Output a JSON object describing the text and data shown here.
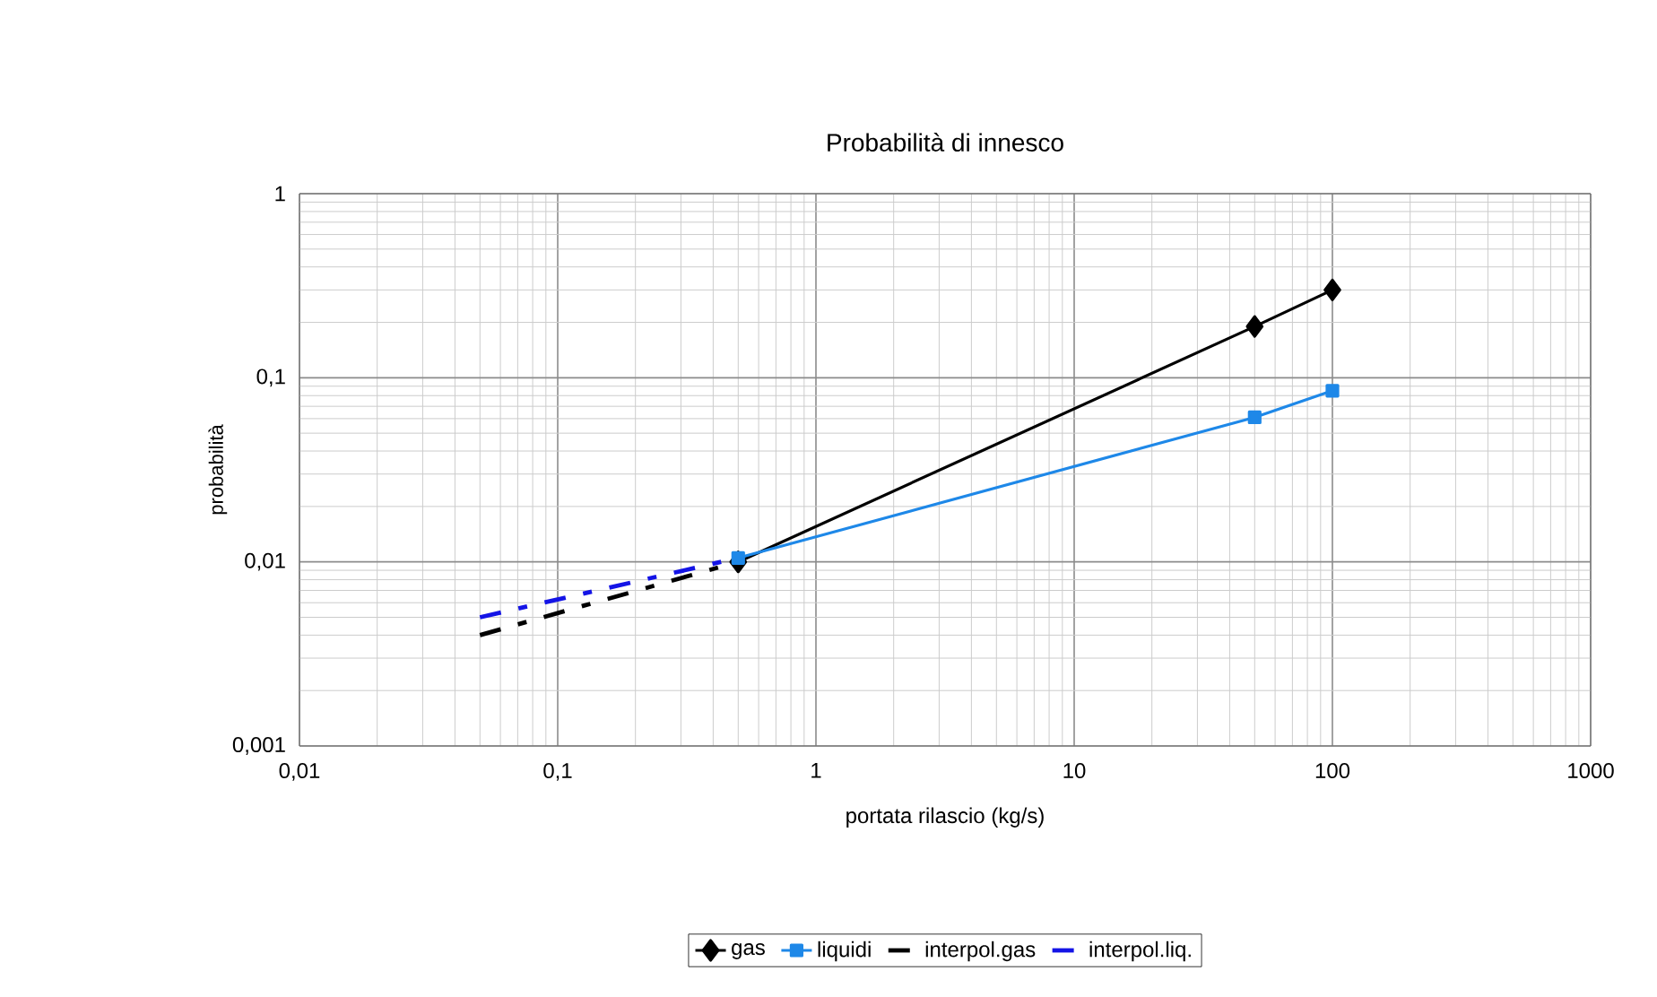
{
  "chart_data": {
    "type": "line",
    "title": "Probabilità di innesco",
    "xlabel": "portata rilascio (kg/s)",
    "ylabel": "probabilità",
    "log": "xy",
    "grid": true,
    "legend": "bottom",
    "xlim": [
      0.01,
      1000
    ],
    "ylim": [
      0.001,
      1
    ],
    "xticks": [
      {
        "value": 0.01,
        "label": "0,01"
      },
      {
        "value": 0.1,
        "label": "0,1"
      },
      1,
      10,
      100,
      1000
    ],
    "yticks": [
      {
        "value": 0.001,
        "label": "0,001"
      },
      {
        "value": 0.01,
        "label": "0,01"
      },
      {
        "value": 0.1,
        "label": "0,1"
      },
      1
    ],
    "series": [
      {
        "name": "gas",
        "color": "#000000",
        "marker": "diamond",
        "line_style": "solid",
        "x": [
          0.5,
          50,
          100
        ],
        "values": [
          0.01,
          0.19,
          0.3
        ]
      },
      {
        "name": "liquidi",
        "color": "#1e88e8",
        "marker": "square",
        "line_style": "solid",
        "x": [
          0.5,
          50,
          100
        ],
        "values": [
          0.0105,
          0.061,
          0.085
        ]
      },
      {
        "name": "interpol.gas",
        "color": "#000000",
        "marker": "none",
        "line_style": "dashed",
        "x": [
          0.05,
          0.5
        ],
        "values": [
          0.004,
          0.01
        ]
      },
      {
        "name": "interpol.liq.",
        "color": "#1414e6",
        "marker": "none",
        "line_style": "dashed",
        "x": [
          0.05,
          0.5
        ],
        "values": [
          0.005,
          0.0105
        ]
      }
    ]
  }
}
